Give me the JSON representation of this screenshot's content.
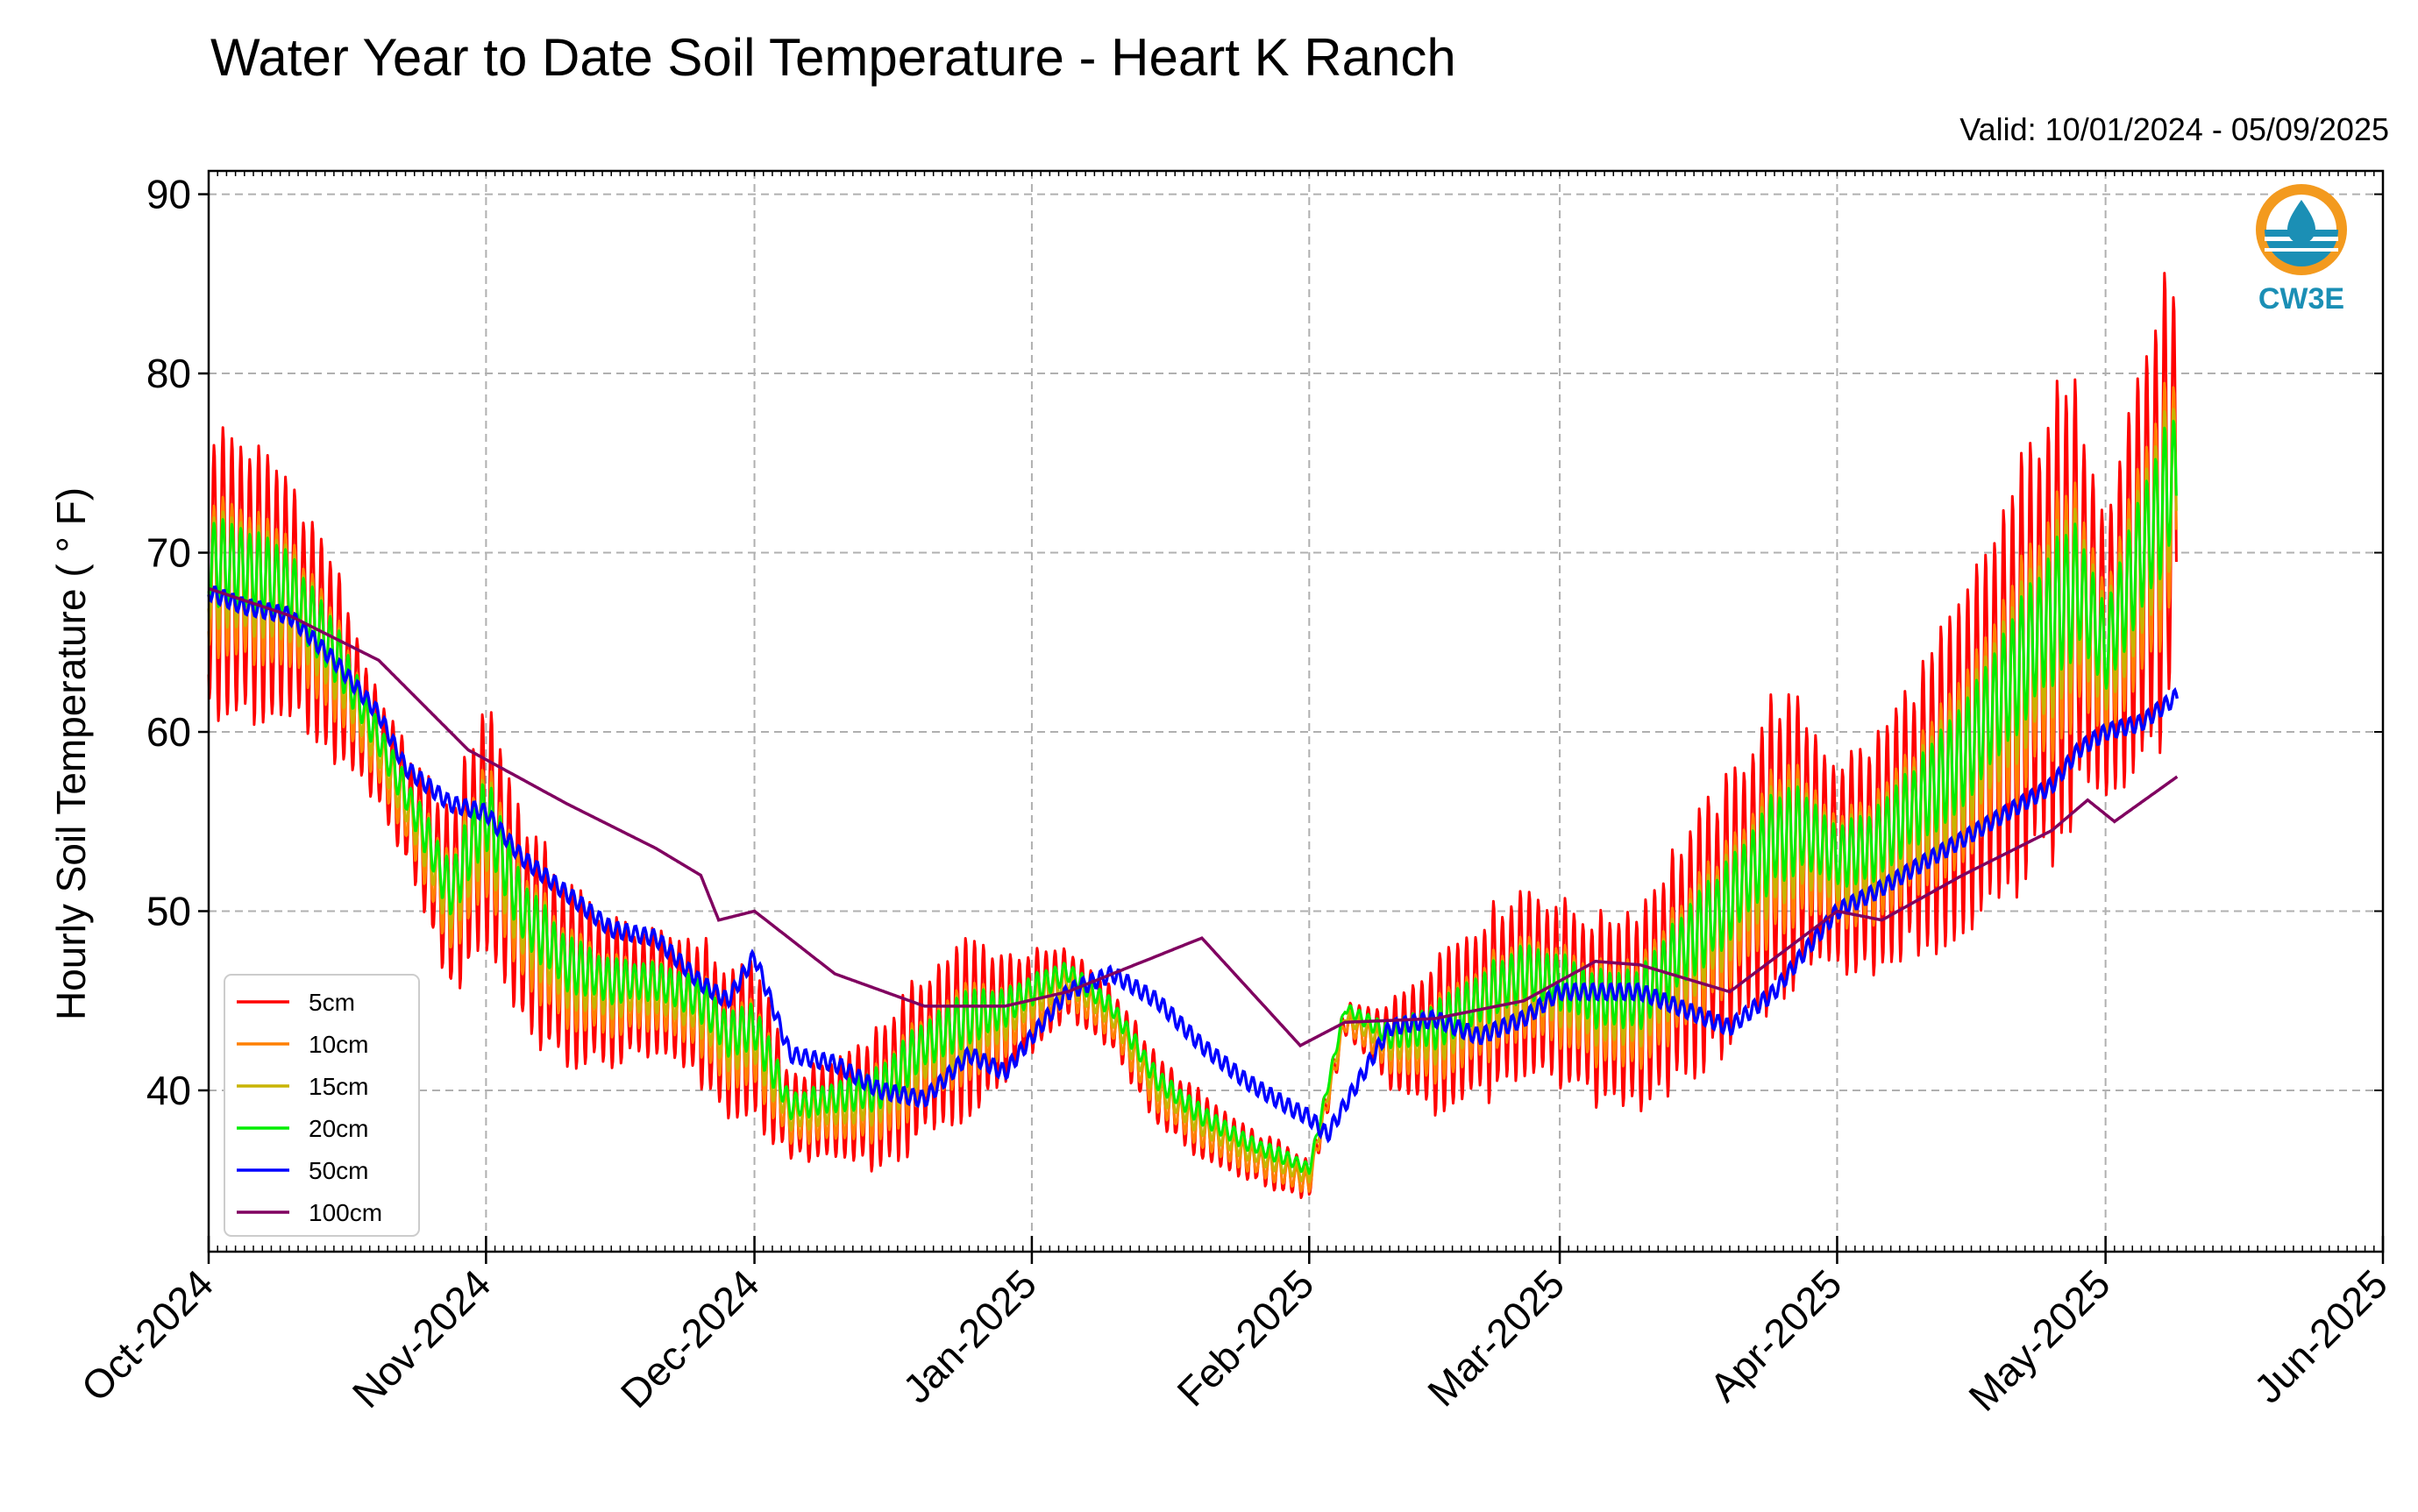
{
  "chart_data": {
    "type": "line",
    "title": "Water Year to Date Soil Temperature - Heart K Ranch",
    "subtitle": "Valid: 10/01/2024 - 05/09/2025",
    "xlabel": "",
    "ylabel": "Hourly Soil Temperature ( ° F)",
    "x_range": [
      "2024-10-01",
      "2025-06-01"
    ],
    "ylim": [
      31,
      91.3
    ],
    "yticks": [
      40,
      50,
      60,
      70,
      80,
      90
    ],
    "xticks": [
      {
        "date": "2024-10-01",
        "label": "Oct-2024"
      },
      {
        "date": "2024-11-01",
        "label": "Nov-2024"
      },
      {
        "date": "2024-12-01",
        "label": "Dec-2024"
      },
      {
        "date": "2025-01-01",
        "label": "Jan-2025"
      },
      {
        "date": "2025-02-01",
        "label": "Feb-2025"
      },
      {
        "date": "2025-03-01",
        "label": "Mar-2025"
      },
      {
        "date": "2025-04-01",
        "label": "Apr-2025"
      },
      {
        "date": "2025-05-01",
        "label": "May-2025"
      },
      {
        "date": "2025-06-01",
        "label": "Jun-2025"
      }
    ],
    "grid": true,
    "legend_position": "lower-left",
    "daily_amplitude": {
      "5cm": 1.0,
      "10cm": 0.55,
      "15cm": 0.4,
      "20cm": 0.3,
      "50cm": 0.04,
      "100cm": 0.0
    },
    "mean_offset": {
      "5cm": 0.0,
      "10cm": -0.2,
      "15cm": 0.2,
      "20cm": 0.6,
      "50cm": 0.0,
      "100cm": 0.0
    },
    "series": [
      {
        "name": "5cm",
        "color": "#ff0000",
        "description": "daily min/max envelope",
        "dates": [
          "2024-10-01",
          "2024-10-05",
          "2024-10-10",
          "2024-10-15",
          "2024-10-20",
          "2024-10-25",
          "2024-10-28",
          "2024-11-01",
          "2024-11-05",
          "2024-11-10",
          "2024-11-15",
          "2024-11-20",
          "2024-11-25",
          "2024-11-28",
          "2024-12-01",
          "2024-12-05",
          "2024-12-10",
          "2024-12-15",
          "2024-12-20",
          "2024-12-25",
          "2024-12-29",
          "2025-01-01",
          "2025-01-05",
          "2025-01-10",
          "2025-01-15",
          "2025-01-20",
          "2025-01-25",
          "2025-01-30",
          "2025-02-01",
          "2025-02-05",
          "2025-02-10",
          "2025-02-15",
          "2025-02-20",
          "2025-02-25",
          "2025-03-01",
          "2025-03-05",
          "2025-03-10",
          "2025-03-15",
          "2025-03-20",
          "2025-03-25",
          "2025-03-28",
          "2025-04-01",
          "2025-04-05",
          "2025-04-10",
          "2025-04-15",
          "2025-04-20",
          "2025-04-25",
          "2025-04-28",
          "2025-05-01",
          "2025-05-05",
          "2025-05-09"
        ],
        "min": [
          60,
          60,
          60,
          58,
          56,
          50,
          45,
          47,
          43,
          41,
          41,
          42,
          40,
          38,
          38,
          36,
          36,
          35,
          37,
          38,
          40,
          42,
          44,
          42,
          38,
          36,
          35,
          34,
          34,
          43,
          40,
          38,
          39,
          40,
          40,
          39,
          38,
          40,
          42,
          44,
          46,
          46,
          46,
          47,
          48,
          50,
          52,
          55,
          54,
          57,
          60
        ],
        "max": [
          78,
          77,
          75,
          70,
          62,
          58,
          56,
          63,
          56,
          52,
          50,
          49,
          49,
          47,
          48,
          41,
          42,
          44,
          47,
          49,
          48,
          48,
          48,
          46,
          42,
          40,
          38,
          37,
          36,
          45,
          45,
          48,
          50,
          52,
          51,
          50,
          51,
          55,
          58,
          63,
          62,
          59,
          60,
          64,
          68,
          74,
          80,
          80,
          74,
          82,
          88
        ]
      },
      {
        "name": "50cm",
        "color": "#0000ff",
        "dates": [
          "2024-10-01",
          "2024-10-05",
          "2024-10-10",
          "2024-10-15",
          "2024-10-20",
          "2024-10-23",
          "2024-10-28",
          "2024-11-01",
          "2024-11-05",
          "2024-11-10",
          "2024-11-15",
          "2024-11-20",
          "2024-11-25",
          "2024-11-28",
          "2024-12-01",
          "2024-12-05",
          "2024-12-10",
          "2024-12-15",
          "2024-12-20",
          "2024-12-25",
          "2024-12-29",
          "2025-01-01",
          "2025-01-05",
          "2025-01-10",
          "2025-01-15",
          "2025-01-20",
          "2025-01-25",
          "2025-01-30",
          "2025-02-01",
          "2025-02-03",
          "2025-02-10",
          "2025-02-15",
          "2025-02-20",
          "2025-02-25",
          "2025-03-01",
          "2025-03-05",
          "2025-03-10",
          "2025-03-15",
          "2025-03-20",
          "2025-03-25",
          "2025-03-28",
          "2025-04-01",
          "2025-04-05",
          "2025-04-10",
          "2025-04-15",
          "2025-04-20",
          "2025-04-25",
          "2025-04-28",
          "2025-05-01",
          "2025-05-05",
          "2025-05-09"
        ],
        "values": [
          67.8,
          67,
          66.5,
          64,
          61,
          58,
          56,
          55.5,
          53,
          51,
          49,
          48.5,
          46,
          45,
          47.5,
          42,
          41.5,
          40,
          39.5,
          42,
          41,
          43,
          45.5,
          46.5,
          45,
          42.5,
          40.5,
          39,
          38.5,
          37.5,
          43.5,
          44,
          43,
          44,
          45.5,
          45.5,
          45.5,
          44.5,
          43.5,
          45.5,
          47.5,
          50,
          51,
          52.5,
          54,
          55.5,
          57,
          59,
          60,
          60.5,
          62
        ]
      },
      {
        "name": "100cm",
        "color": "#800060",
        "dates": [
          "2024-10-01",
          "2024-10-10",
          "2024-10-20",
          "2024-10-30",
          "2024-11-10",
          "2024-11-20",
          "2024-11-25",
          "2024-11-27",
          "2024-12-01",
          "2024-12-10",
          "2024-12-20",
          "2024-12-29",
          "2025-01-05",
          "2025-01-10",
          "2025-01-15",
          "2025-01-20",
          "2025-01-31",
          "2025-02-05",
          "2025-02-15",
          "2025-02-25",
          "2025-03-05",
          "2025-03-10",
          "2025-03-20",
          "2025-04-01",
          "2025-04-06",
          "2025-04-15",
          "2025-04-25",
          "2025-04-29",
          "2025-05-02",
          "2025-05-09"
        ],
        "values": [
          68,
          66.5,
          64,
          59,
          56,
          53.5,
          52,
          49.5,
          50,
          46.5,
          44.7,
          44.7,
          45.5,
          46.5,
          47.5,
          48.5,
          42.5,
          43.8,
          44,
          45,
          47.2,
          47,
          45.5,
          50,
          49.5,
          52,
          54.5,
          56.2,
          55,
          57.5
        ]
      }
    ]
  },
  "legend": {
    "items": [
      {
        "label": "5cm",
        "color": "#ff0000"
      },
      {
        "label": "10cm",
        "color": "#ff8000"
      },
      {
        "label": "15cm",
        "color": "#c8b400"
      },
      {
        "label": "20cm",
        "color": "#00ee00"
      },
      {
        "label": "50cm",
        "color": "#0000ff"
      },
      {
        "label": "100cm",
        "color": "#800060"
      }
    ]
  },
  "logo": {
    "text": "CW3E",
    "colors": {
      "orange": "#f39a1e",
      "teal": "#1b8fb5"
    }
  }
}
